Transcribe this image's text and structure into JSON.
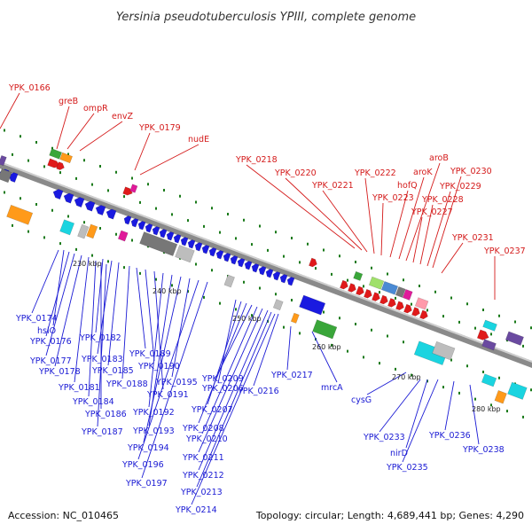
{
  "title": "Yersinia pseudotuberculosis YPIII, complete genome",
  "footer": {
    "accession": "Accession: NC_010465",
    "stats": "Topology: circular; Length: 4,689,441 bp; Genes: 4,290"
  },
  "colors": {
    "top_labels": "#d41a1a",
    "bottom_labels": "#1a1ad4",
    "backbone": "#8a8a8a",
    "tick": "#1a7a1a",
    "gene_forward": "#e01a1a",
    "gene_reverse": "#1a1ae0"
  },
  "kbp_marks": [
    "230 kbp",
    "240 kbp",
    "250 kbp",
    "260 kbp",
    "270 kbp",
    "280 kbp"
  ],
  "top_labels": [
    "YPK_0166",
    "greB",
    "ompR",
    "envZ",
    "YPK_0179",
    "nudE",
    "YPK_0218",
    "YPK_0220",
    "YPK_0221",
    "YPK_0222",
    "YPK_0223",
    "hofQ",
    "aroK",
    "aroB",
    "YPK_0227",
    "YPK_0228",
    "YPK_0229",
    "YPK_0230",
    "YPK_0231",
    "YPK_0237"
  ],
  "bottom_labels": [
    "YPK_0174",
    "hslO",
    "YPK_0176",
    "YPK_0177",
    "YPK_0178",
    "YPK_0181",
    "YPK_0182",
    "YPK_0183",
    "YPK_0184",
    "YPK_0185",
    "YPK_0186",
    "YPK_0187",
    "YPK_0188",
    "YPK_0189",
    "YPK_0190",
    "YPK_0191",
    "YPK_0192",
    "YPK_0193",
    "YPK_0194",
    "YPK_0195",
    "YPK_0196",
    "YPK_0197",
    "YPK_0206",
    "YPK_0207",
    "YPK_0208",
    "YPK_0209",
    "YPK_0210",
    "YPK_0211",
    "YPK_0212",
    "YPK_0213",
    "YPK_0214",
    "YPK_0216",
    "YPK_0217",
    "mrcA",
    "cysG",
    "YPK_0233",
    "nirD",
    "YPK_0235",
    "YPK_0236",
    "YPK_0238"
  ]
}
